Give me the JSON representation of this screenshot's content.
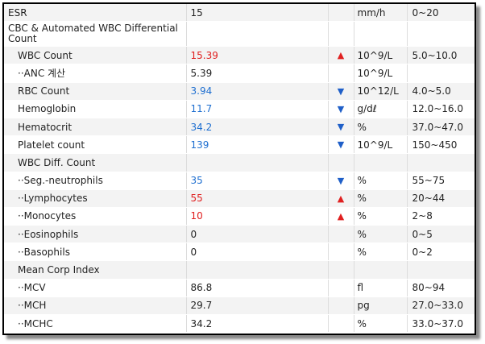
{
  "rows": [
    {
      "name": "ESR",
      "indent": 0,
      "value": "15",
      "value_color": "",
      "flag": "",
      "unit": "mm/h",
      "ref": "0~20"
    },
    {
      "name": "CBC & Automated WBC Differential Count",
      "indent": 0,
      "value": "",
      "value_color": "",
      "flag": "",
      "unit": "",
      "ref": "",
      "tall": true
    },
    {
      "name": "WBC Count",
      "indent": 1,
      "value": "15.39",
      "value_color": "red",
      "flag": "up",
      "unit": "10^9/L",
      "ref": "5.0~10.0"
    },
    {
      "name": "··ANC 계산",
      "indent": 1,
      "value": "5.39",
      "value_color": "",
      "flag": "",
      "unit": "10^9/L",
      "ref": ""
    },
    {
      "name": "RBC Count",
      "indent": 1,
      "value": "3.94",
      "value_color": "blue",
      "flag": "down",
      "unit": "10^12/L",
      "ref": "4.0~5.0"
    },
    {
      "name": "Hemoglobin",
      "indent": 1,
      "value": "11.7",
      "value_color": "blue",
      "flag": "down",
      "unit": "g/dℓ",
      "ref": "12.0~16.0"
    },
    {
      "name": "Hematocrit",
      "indent": 1,
      "value": "34.2",
      "value_color": "blue",
      "flag": "down",
      "unit": "%",
      "ref": "37.0~47.0"
    },
    {
      "name": "Platelet count",
      "indent": 1,
      "value": "139",
      "value_color": "blue",
      "flag": "down",
      "unit": "10^9/L",
      "ref": "150~450"
    },
    {
      "name": "WBC Diff. Count",
      "indent": 1,
      "value": "",
      "value_color": "",
      "flag": "",
      "unit": "",
      "ref": ""
    },
    {
      "name": "··Seg.-neutrophils",
      "indent": 1,
      "value": "35",
      "value_color": "blue",
      "flag": "down",
      "unit": "%",
      "ref": "55~75"
    },
    {
      "name": "··Lymphocytes",
      "indent": 1,
      "value": "55",
      "value_color": "red",
      "flag": "up",
      "unit": "%",
      "ref": "20~44"
    },
    {
      "name": "··Monocytes",
      "indent": 1,
      "value": "10",
      "value_color": "red",
      "flag": "up",
      "unit": "%",
      "ref": "2~8"
    },
    {
      "name": "··Eosinophils",
      "indent": 1,
      "value": "0",
      "value_color": "",
      "flag": "",
      "unit": "%",
      "ref": "0~5"
    },
    {
      "name": "··Basophils",
      "indent": 1,
      "value": "0",
      "value_color": "",
      "flag": "",
      "unit": "%",
      "ref": "0~2"
    },
    {
      "name": "Mean Corp Index",
      "indent": 1,
      "value": "",
      "value_color": "",
      "flag": "",
      "unit": "",
      "ref": ""
    },
    {
      "name": "··MCV",
      "indent": 1,
      "value": "86.8",
      "value_color": "",
      "flag": "",
      "unit": "fl",
      "ref": "80~94"
    },
    {
      "name": "··MCH",
      "indent": 1,
      "value": "29.7",
      "value_color": "",
      "flag": "",
      "unit": "pg",
      "ref": "27.0~33.0"
    },
    {
      "name": "··MCHC",
      "indent": 1,
      "value": "34.2",
      "value_color": "",
      "flag": "",
      "unit": "%",
      "ref": "33.0~37.0"
    }
  ],
  "flag_glyphs": {
    "up": "▲",
    "down": "▼"
  },
  "colors": {
    "high": "#e02020",
    "low": "#1f6fd0"
  }
}
